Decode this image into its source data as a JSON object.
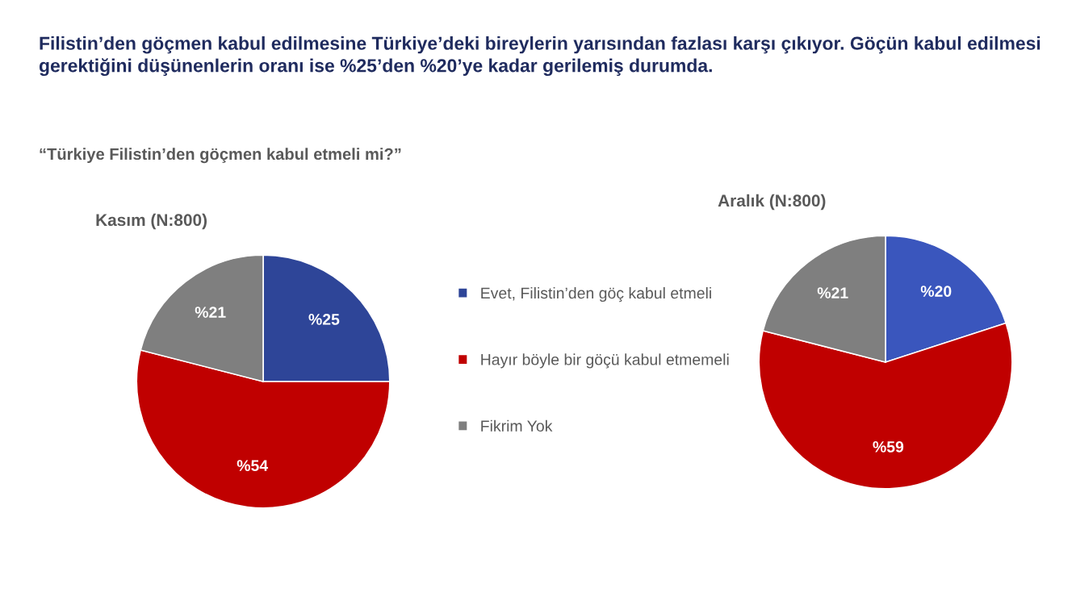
{
  "chart_data": [
    {
      "type": "pie",
      "title": "Kasım (N:800)",
      "categories": [
        "Evet, Filistin’den göç kabul etmeli",
        "Hayır böyle bir göçü kabul etmemeli",
        "Fikrim Yok"
      ],
      "values": [
        25,
        54,
        21
      ],
      "colors": [
        "#2e4598",
        "#c00000",
        "#7f7f7f"
      ],
      "value_labels": [
        "%25",
        "%54",
        "%21"
      ],
      "legend": "right",
      "annotations": [
        "Filistin’den göçmen kabul edilmesine Türkiye’deki bireylerin yarısından fazlası karşı çıkıyor. Göçün kabul edilmesi gerektiğini düşünenlerin oranı ise %25’den %20’ye kadar gerilemiş durumda.",
        "“Türkiye Filistin’den göçmen kabul etmeli mi?”"
      ]
    },
    {
      "type": "pie",
      "title": "Aralık (N:800)",
      "categories": [
        null,
        null,
        null
      ],
      "values": [
        20,
        59,
        21
      ],
      "colors": [
        "#3a56bd",
        "#c00000",
        "#7f7f7f"
      ],
      "value_labels": [
        "%20",
        "%59",
        "%21"
      ]
    }
  ]
}
